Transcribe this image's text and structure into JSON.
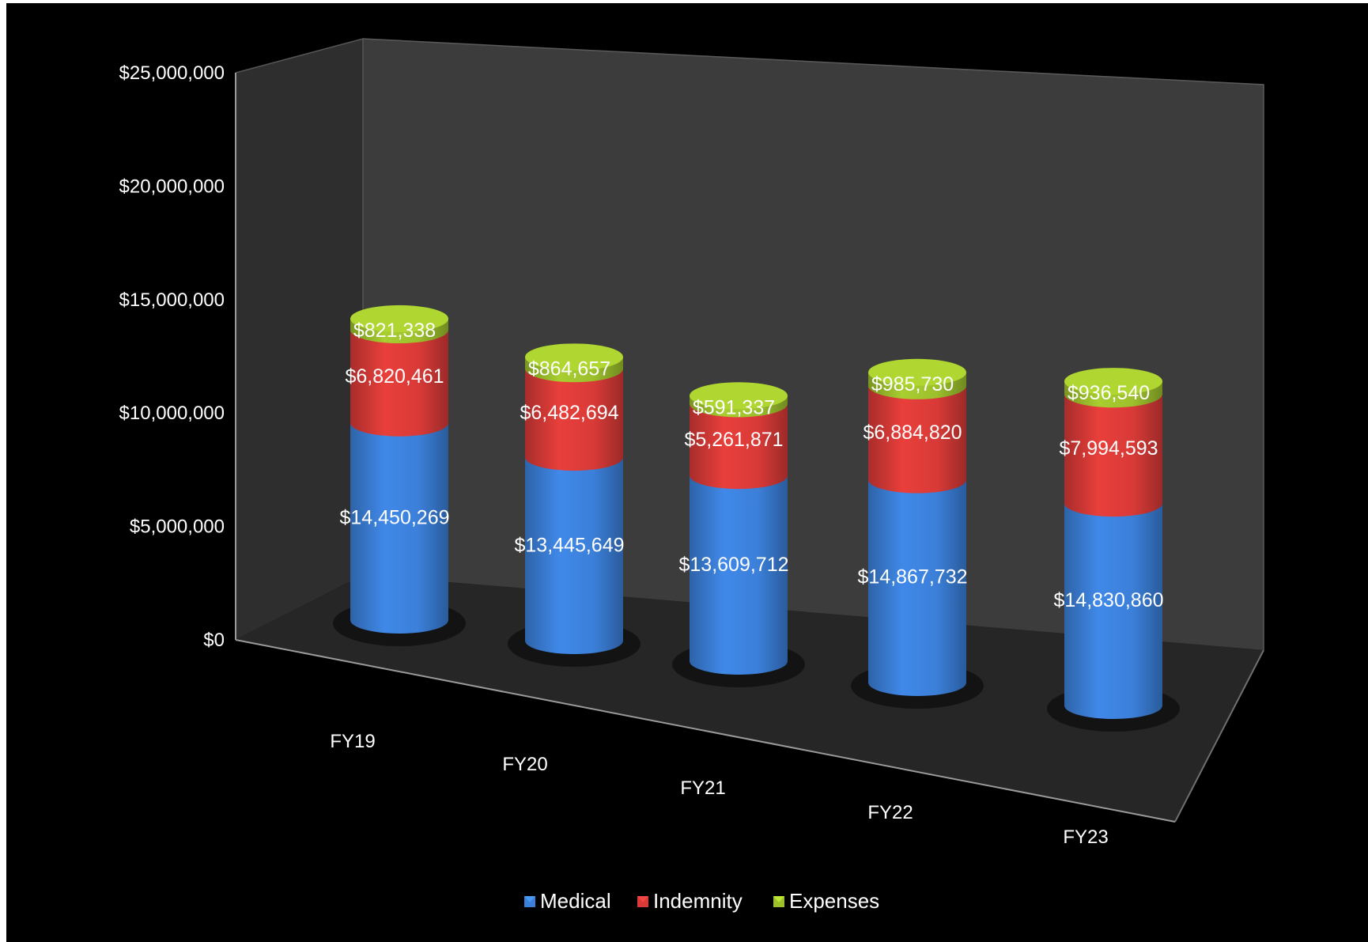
{
  "chart_data": {
    "type": "bar",
    "stacked": true,
    "style": "3d-cylinder",
    "categories": [
      "FY19",
      "FY20",
      "FY21",
      "FY22",
      "FY23"
    ],
    "series": [
      {
        "name": "Medical",
        "color": "#3b7fd8",
        "values": [
          14450269,
          13445649,
          13609712,
          14867732,
          14830860
        ],
        "labels": [
          "$14,450,269",
          "$13,445,649",
          "$13,609,712",
          "$14,867,732",
          "$14,830,860"
        ]
      },
      {
        "name": "Indemnity",
        "color": "#d83a37",
        "values": [
          6820461,
          6482694,
          5261871,
          6884820,
          7994593
        ],
        "labels": [
          "$6,820,461",
          "$6,482,694",
          "$5,261,871",
          "$6,884,820",
          "$7,994,593"
        ]
      },
      {
        "name": "Expenses",
        "color": "#9cbf2c",
        "values": [
          821338,
          864657,
          591337,
          985730,
          936540
        ],
        "labels": [
          "$821,338",
          "$864,657",
          "$591,337",
          "$985,730",
          "$936,540"
        ]
      }
    ],
    "yticks": [
      "$0",
      "$5,000,000",
      "$10,000,000",
      "$15,000,000",
      "$20,000,000",
      "$25,000,000"
    ],
    "ylim": [
      0,
      25000000
    ],
    "title": "",
    "xlabel": "",
    "ylabel": "",
    "legend": "bottom",
    "background": "#000000",
    "wall_color": "#3a3a3a",
    "floor_color": "#2a2a2a"
  }
}
